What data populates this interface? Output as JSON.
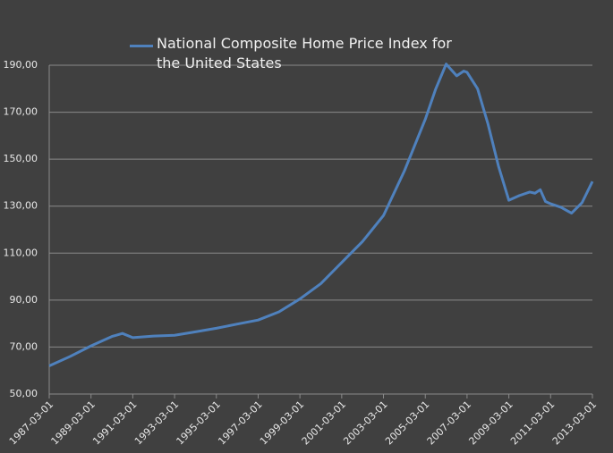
{
  "chart_data": {
    "type": "line",
    "x": [
      "1987-03-01",
      "1988-03-01",
      "1989-03-01",
      "1990-03-01",
      "1990-09-01",
      "1991-03-01",
      "1992-03-01",
      "1993-03-01",
      "1994-03-01",
      "1995-03-01",
      "1996-03-01",
      "1997-03-01",
      "1998-03-01",
      "1999-03-01",
      "2000-03-01",
      "2001-03-01",
      "2002-03-01",
      "2003-03-01",
      "2004-03-01",
      "2005-03-01",
      "2005-09-01",
      "2006-03-01",
      "2006-09-01",
      "2007-01-01",
      "2007-03-01",
      "2007-09-01",
      "2008-03-01",
      "2008-09-01",
      "2009-03-01",
      "2009-09-01",
      "2010-03-01",
      "2010-06-01",
      "2010-09-01",
      "2010-12-01",
      "2011-03-01",
      "2011-09-01",
      "2012-03-01",
      "2012-09-01",
      "2013-03-01"
    ],
    "series": [
      {
        "name": "National Composite Home Price Index for the United States",
        "color": "#4f81bd",
        "values": [
          62,
          66,
          70.5,
          74.5,
          75.8,
          74,
          74.7,
          75,
          76.5,
          78,
          79.8,
          81.5,
          85,
          90.5,
          97,
          106,
          115,
          126,
          145,
          167,
          180,
          190.5,
          185.5,
          187.5,
          187,
          180,
          165,
          147,
          132.5,
          134.5,
          136,
          135.5,
          137,
          132,
          131,
          129.5,
          127,
          131.5,
          140.5
        ]
      }
    ],
    "xlim": [
      "1987-03-01",
      "2013-03-01"
    ],
    "xticks": [
      "1987-03-01",
      "1989-03-01",
      "1991-03-01",
      "1993-03-01",
      "1995-03-01",
      "1997-03-01",
      "1999-03-01",
      "2001-03-01",
      "2003-03-01",
      "2005-03-01",
      "2007-03-01",
      "2009-03-01",
      "2011-03-01",
      "2013-03-01"
    ],
    "ylim": [
      50,
      190
    ],
    "yticks": [
      {
        "value": 50,
        "label": "50,00"
      },
      {
        "value": 70,
        "label": "70,00"
      },
      {
        "value": 90,
        "label": "90,00"
      },
      {
        "value": 110,
        "label": "110,00"
      },
      {
        "value": 130,
        "label": "130,00"
      },
      {
        "value": 150,
        "label": "150,00"
      },
      {
        "value": 170,
        "label": "170,00"
      },
      {
        "value": 190,
        "label": "190,00"
      }
    ],
    "grid": true,
    "legend": "top"
  }
}
